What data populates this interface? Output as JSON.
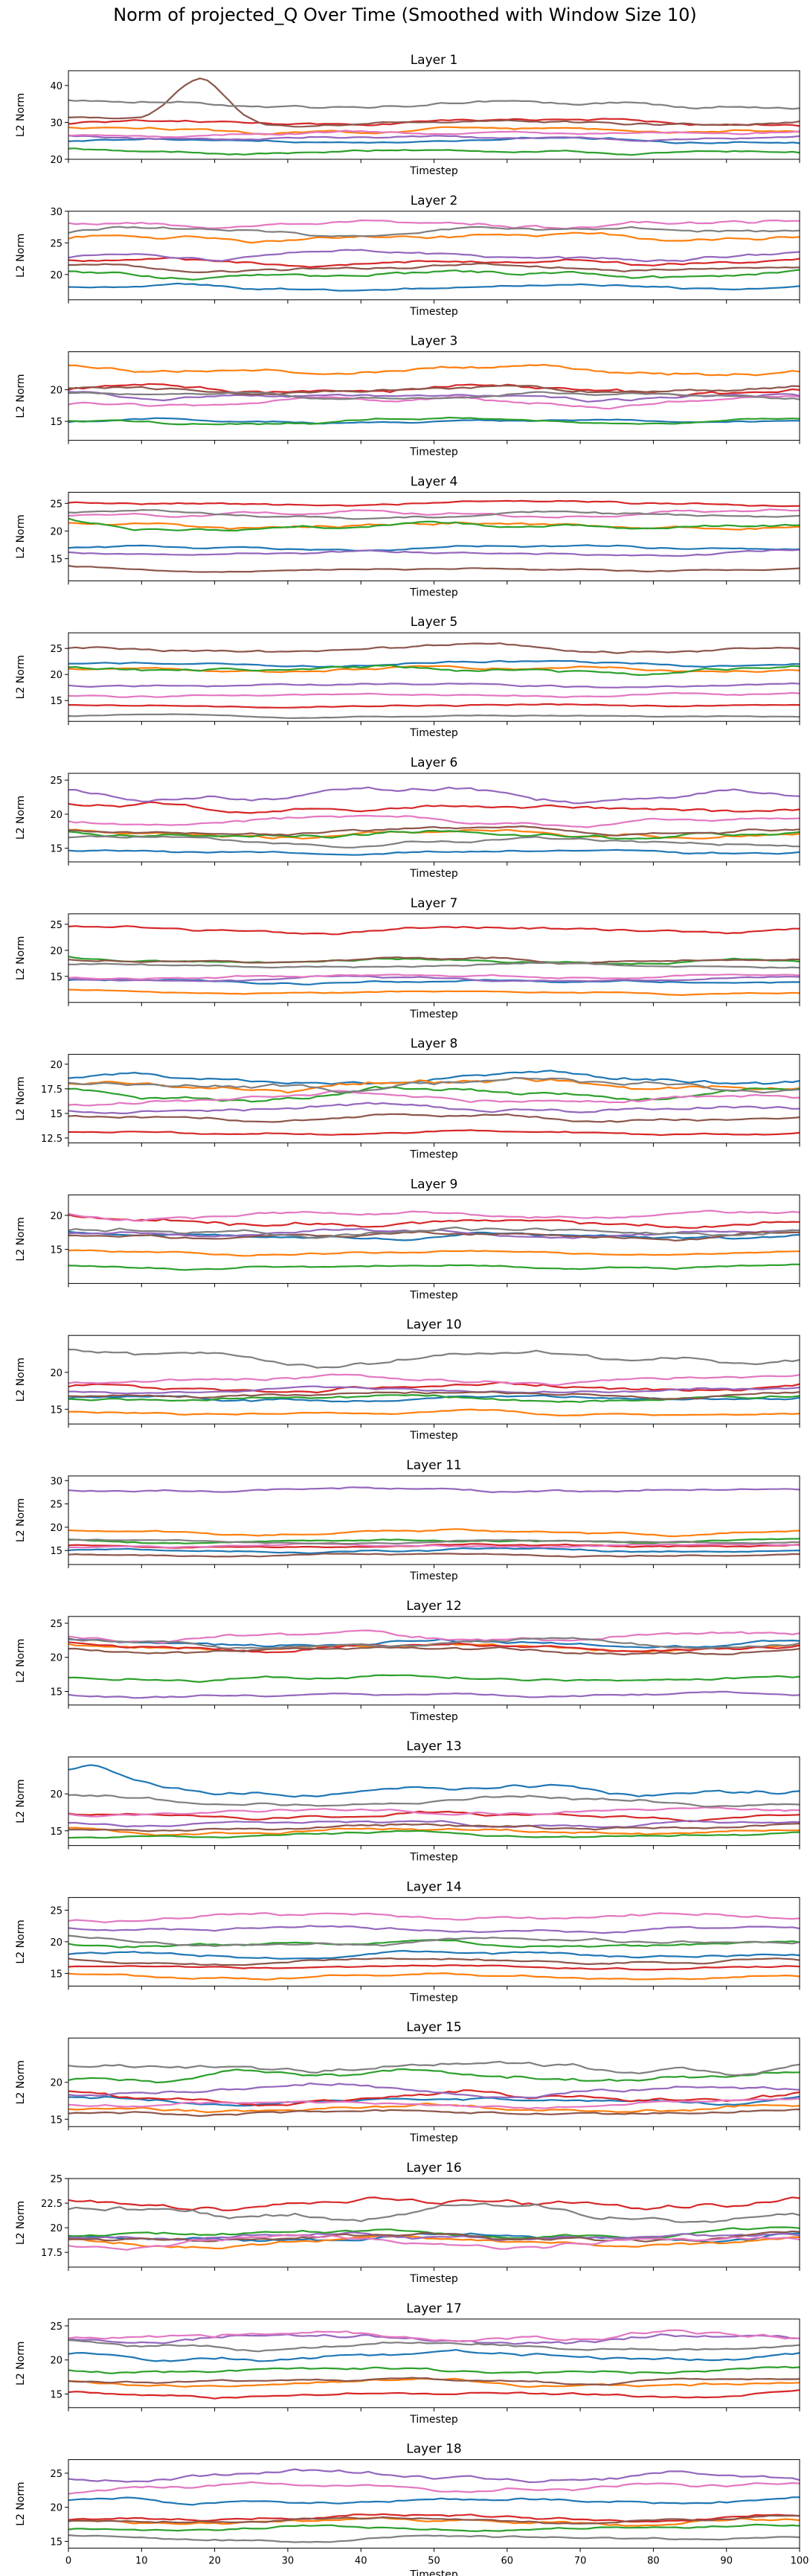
{
  "title": "Norm of projected_Q Over Time (Smoothed with Window Size 10)",
  "colors": [
    "#1f77b4",
    "#ff7f0e",
    "#2ca02c",
    "#d62728",
    "#9467bd",
    "#8c564b",
    "#e377c2",
    "#7f7f7f"
  ],
  "chart_data": {
    "type": "line",
    "xlabel": "Timestep",
    "ylabel": "L2 Norm",
    "xlim": [
      0,
      100
    ],
    "x_ticks": [
      0,
      10,
      20,
      30,
      40,
      50,
      60,
      70,
      80,
      90,
      100
    ],
    "n_points": 101,
    "panels": [
      {
        "title": "Layer 1",
        "ylim": [
          20,
          44
        ],
        "yticks": [
          20,
          30,
          40
        ],
        "series": [
          {
            "base": 25,
            "amp": 0.8,
            "phase": 0.3
          },
          {
            "base": 28,
            "amp": 1.0,
            "phase": 1.1
          },
          {
            "base": 22,
            "amp": 0.8,
            "phase": 2.0
          },
          {
            "base": 30,
            "amp": 0.9,
            "phase": 0.7
          },
          {
            "base": 26,
            "amp": 0.8,
            "phase": 2.6
          },
          {
            "base": 30,
            "amp": 1.0,
            "phase": 1.5,
            "bump": {
              "center": 18,
              "width": 5,
              "height": 12
            }
          },
          {
            "base": 27,
            "amp": 0.8,
            "phase": 3.1
          },
          {
            "base": 35,
            "amp": 1.2,
            "phase": 0.9
          }
        ]
      },
      {
        "title": "Layer 2",
        "ylim": [
          16,
          30
        ],
        "yticks": [
          20,
          25,
          30
        ],
        "series": [
          {
            "base": 18,
            "amp": 0.5,
            "phase": 0.4
          },
          {
            "base": 26,
            "amp": 0.8,
            "phase": 1.2
          },
          {
            "base": 20,
            "amp": 0.8,
            "phase": 2.1
          },
          {
            "base": 22,
            "amp": 0.7,
            "phase": 0.8
          },
          {
            "base": 23,
            "amp": 0.7,
            "phase": 2.5
          },
          {
            "base": 21,
            "amp": 0.6,
            "phase": 1.6
          },
          {
            "base": 28,
            "amp": 0.8,
            "phase": 3.0
          },
          {
            "base": 27,
            "amp": 0.7,
            "phase": 0.2
          }
        ]
      },
      {
        "title": "Layer 3",
        "ylim": [
          12,
          26
        ],
        "yticks": [
          15,
          20
        ],
        "series": [
          {
            "base": 15,
            "amp": 0.4,
            "phase": 0.5
          },
          {
            "base": 23,
            "amp": 0.8,
            "phase": 1.3
          },
          {
            "base": 15,
            "amp": 0.5,
            "phase": 2.2
          },
          {
            "base": 20,
            "amp": 0.9,
            "phase": 0.9
          },
          {
            "base": 19,
            "amp": 0.8,
            "phase": 2.7
          },
          {
            "base": 20,
            "amp": 0.7,
            "phase": 1.7
          },
          {
            "base": 18,
            "amp": 0.8,
            "phase": 3.2
          },
          {
            "base": 19,
            "amp": 0.6,
            "phase": 0.1
          }
        ]
      },
      {
        "title": "Layer 4",
        "ylim": [
          11,
          27
        ],
        "yticks": [
          15,
          20,
          25
        ],
        "series": [
          {
            "base": 17,
            "amp": 0.5,
            "phase": 0.6
          },
          {
            "base": 21,
            "amp": 0.8,
            "phase": 1.4
          },
          {
            "base": 21,
            "amp": 0.8,
            "phase": 2.3
          },
          {
            "base": 25,
            "amp": 0.6,
            "phase": 1.0
          },
          {
            "base": 16,
            "amp": 0.5,
            "phase": 2.8
          },
          {
            "base": 13,
            "amp": 0.4,
            "phase": 1.8
          },
          {
            "base": 23,
            "amp": 0.8,
            "phase": 3.3
          },
          {
            "base": 23,
            "amp": 0.7,
            "phase": 0.4
          }
        ]
      },
      {
        "title": "Layer 5",
        "ylim": [
          11,
          28
        ],
        "yticks": [
          15,
          20,
          25
        ],
        "series": [
          {
            "base": 22,
            "amp": 0.6,
            "phase": 0.7
          },
          {
            "base": 21,
            "amp": 0.7,
            "phase": 1.5
          },
          {
            "base": 21,
            "amp": 0.9,
            "phase": 2.4
          },
          {
            "base": 14,
            "amp": 0.4,
            "phase": 1.1
          },
          {
            "base": 18,
            "amp": 0.5,
            "phase": 2.9
          },
          {
            "base": 25,
            "amp": 0.8,
            "phase": 1.9
          },
          {
            "base": 16,
            "amp": 0.5,
            "phase": 3.4
          },
          {
            "base": 12,
            "amp": 0.3,
            "phase": 0.5
          }
        ]
      },
      {
        "title": "Layer 6",
        "ylim": [
          13,
          26
        ],
        "yticks": [
          15,
          20,
          25
        ],
        "series": [
          {
            "base": 14.5,
            "amp": 0.5,
            "phase": 0.8
          },
          {
            "base": 17,
            "amp": 0.7,
            "phase": 1.6
          },
          {
            "base": 17,
            "amp": 0.8,
            "phase": 2.5
          },
          {
            "base": 21,
            "amp": 0.9,
            "phase": 1.2
          },
          {
            "base": 23,
            "amp": 1.0,
            "phase": 3.0
          },
          {
            "base": 17.5,
            "amp": 0.6,
            "phase": 2.0
          },
          {
            "base": 19,
            "amp": 0.7,
            "phase": 3.5
          },
          {
            "base": 16,
            "amp": 0.6,
            "phase": 0.6
          }
        ]
      },
      {
        "title": "Layer 7",
        "ylim": [
          10,
          27
        ],
        "yticks": [
          15,
          20,
          25
        ],
        "series": [
          {
            "base": 14,
            "amp": 0.5,
            "phase": 0.9
          },
          {
            "base": 12,
            "amp": 0.4,
            "phase": 1.7
          },
          {
            "base": 18,
            "amp": 0.6,
            "phase": 2.6
          },
          {
            "base": 24,
            "amp": 0.7,
            "phase": 1.3
          },
          {
            "base": 14.5,
            "amp": 0.5,
            "phase": 3.1
          },
          {
            "base": 18,
            "amp": 0.6,
            "phase": 2.1
          },
          {
            "base": 15,
            "amp": 0.5,
            "phase": 3.6
          },
          {
            "base": 17,
            "amp": 0.5,
            "phase": 0.7
          }
        ]
      },
      {
        "title": "Layer 8",
        "ylim": [
          12,
          21
        ],
        "yticks": [
          12.5,
          15.0,
          17.5,
          20.0
        ],
        "series": [
          {
            "base": 18.5,
            "amp": 0.6,
            "phase": 1.0
          },
          {
            "base": 18,
            "amp": 0.7,
            "phase": 1.8
          },
          {
            "base": 17,
            "amp": 0.6,
            "phase": 2.7
          },
          {
            "base": 13,
            "amp": 0.3,
            "phase": 1.4
          },
          {
            "base": 15.5,
            "amp": 0.5,
            "phase": 3.2
          },
          {
            "base": 14.5,
            "amp": 0.4,
            "phase": 2.2
          },
          {
            "base": 16.5,
            "amp": 0.6,
            "phase": 3.7
          },
          {
            "base": 18,
            "amp": 0.7,
            "phase": 0.8
          }
        ]
      },
      {
        "title": "Layer 9",
        "ylim": [
          10,
          23
        ],
        "yticks": [
          15,
          20
        ],
        "series": [
          {
            "base": 17,
            "amp": 0.6,
            "phase": 1.1
          },
          {
            "base": 14.5,
            "amp": 0.4,
            "phase": 1.9
          },
          {
            "base": 12.5,
            "amp": 0.4,
            "phase": 2.8
          },
          {
            "base": 19,
            "amp": 0.9,
            "phase": 1.5
          },
          {
            "base": 17.5,
            "amp": 0.6,
            "phase": 3.3
          },
          {
            "base": 17,
            "amp": 0.6,
            "phase": 2.3
          },
          {
            "base": 20,
            "amp": 0.7,
            "phase": 3.8
          },
          {
            "base": 17.5,
            "amp": 0.8,
            "phase": 0.9
          }
        ]
      },
      {
        "title": "Layer 10",
        "ylim": [
          13,
          25
        ],
        "yticks": [
          15,
          20
        ],
        "series": [
          {
            "base": 16.5,
            "amp": 0.5,
            "phase": 1.2
          },
          {
            "base": 14.5,
            "amp": 0.4,
            "phase": 2.0
          },
          {
            "base": 16.5,
            "amp": 0.5,
            "phase": 2.9
          },
          {
            "base": 18,
            "amp": 0.7,
            "phase": 1.6
          },
          {
            "base": 17.5,
            "amp": 0.5,
            "phase": 3.4
          },
          {
            "base": 17,
            "amp": 0.5,
            "phase": 2.4
          },
          {
            "base": 19,
            "amp": 0.6,
            "phase": 3.9
          },
          {
            "base": 22,
            "amp": 0.9,
            "phase": 1.0
          }
        ]
      },
      {
        "title": "Layer 11",
        "ylim": [
          12,
          31
        ],
        "yticks": [
          15,
          20,
          25,
          30
        ],
        "series": [
          {
            "base": 15,
            "amp": 0.5,
            "phase": 1.3
          },
          {
            "base": 19,
            "amp": 0.7,
            "phase": 2.1
          },
          {
            "base": 17,
            "amp": 0.5,
            "phase": 3.0
          },
          {
            "base": 16,
            "amp": 0.5,
            "phase": 1.7
          },
          {
            "base": 28,
            "amp": 0.7,
            "phase": 3.5
          },
          {
            "base": 14,
            "amp": 0.4,
            "phase": 2.5
          },
          {
            "base": 16,
            "amp": 0.5,
            "phase": 4.0
          },
          {
            "base": 17,
            "amp": 0.5,
            "phase": 1.1
          }
        ]
      },
      {
        "title": "Layer 12",
        "ylim": [
          13,
          26
        ],
        "yticks": [
          15,
          20,
          25
        ],
        "series": [
          {
            "base": 22,
            "amp": 0.7,
            "phase": 1.4
          },
          {
            "base": 21.5,
            "amp": 0.7,
            "phase": 2.2
          },
          {
            "base": 17,
            "amp": 0.6,
            "phase": 3.1
          },
          {
            "base": 21.5,
            "amp": 0.7,
            "phase": 1.8
          },
          {
            "base": 14.5,
            "amp": 0.4,
            "phase": 3.6
          },
          {
            "base": 21,
            "amp": 0.6,
            "phase": 2.6
          },
          {
            "base": 23,
            "amp": 0.8,
            "phase": 4.1
          },
          {
            "base": 22,
            "amp": 0.8,
            "phase": 1.2
          }
        ]
      },
      {
        "title": "Layer 13",
        "ylim": [
          13,
          25
        ],
        "yticks": [
          15,
          20
        ],
        "series": [
          {
            "base": 20.5,
            "amp": 0.9,
            "phase": 1.5,
            "bump": {
              "center": 3,
              "width": 6,
              "height": 3
            }
          },
          {
            "base": 15,
            "amp": 0.5,
            "phase": 2.3
          },
          {
            "base": 14.5,
            "amp": 0.4,
            "phase": 3.2
          },
          {
            "base": 17,
            "amp": 0.6,
            "phase": 1.9
          },
          {
            "base": 16,
            "amp": 0.5,
            "phase": 3.7
          },
          {
            "base": 15.5,
            "amp": 0.5,
            "phase": 2.7
          },
          {
            "base": 17.5,
            "amp": 0.6,
            "phase": 4.2
          },
          {
            "base": 19,
            "amp": 0.7,
            "phase": 1.3
          }
        ]
      },
      {
        "title": "Layer 14",
        "ylim": [
          13,
          27
        ],
        "yticks": [
          15,
          20,
          25
        ],
        "series": [
          {
            "base": 18,
            "amp": 0.6,
            "phase": 1.6
          },
          {
            "base": 14.5,
            "amp": 0.5,
            "phase": 2.4
          },
          {
            "base": 19.5,
            "amp": 0.7,
            "phase": 3.3
          },
          {
            "base": 16,
            "amp": 0.4,
            "phase": 2.0
          },
          {
            "base": 22,
            "amp": 0.6,
            "phase": 3.8
          },
          {
            "base": 17,
            "amp": 0.5,
            "phase": 2.8
          },
          {
            "base": 24,
            "amp": 0.8,
            "phase": 4.3
          },
          {
            "base": 20,
            "amp": 0.7,
            "phase": 1.4
          }
        ]
      },
      {
        "title": "Layer 15",
        "ylim": [
          14,
          26
        ],
        "yticks": [
          15,
          20
        ],
        "series": [
          {
            "base": 17.5,
            "amp": 0.6,
            "phase": 1.7
          },
          {
            "base": 16.5,
            "amp": 0.6,
            "phase": 2.5
          },
          {
            "base": 21,
            "amp": 0.8,
            "phase": 3.4
          },
          {
            "base": 18,
            "amp": 0.9,
            "phase": 2.1
          },
          {
            "base": 19,
            "amp": 0.8,
            "phase": 3.9
          },
          {
            "base": 16,
            "amp": 0.5,
            "phase": 2.9
          },
          {
            "base": 17,
            "amp": 0.6,
            "phase": 4.4
          },
          {
            "base": 22,
            "amp": 0.9,
            "phase": 1.5
          }
        ]
      },
      {
        "title": "Layer 16",
        "ylim": [
          16,
          25
        ],
        "yticks": [
          17.5,
          20.0,
          22.5,
          25.0
        ],
        "series": [
          {
            "base": 19,
            "amp": 0.5,
            "phase": 1.8
          },
          {
            "base": 18.5,
            "amp": 0.5,
            "phase": 2.6
          },
          {
            "base": 19.5,
            "amp": 0.5,
            "phase": 3.5
          },
          {
            "base": 22.5,
            "amp": 0.8,
            "phase": 2.2
          },
          {
            "base": 19,
            "amp": 0.5,
            "phase": 4.0
          },
          {
            "base": 19,
            "amp": 0.5,
            "phase": 3.0
          },
          {
            "base": 18.5,
            "amp": 0.6,
            "phase": 4.5
          },
          {
            "base": 21.5,
            "amp": 0.8,
            "phase": 1.6
          }
        ]
      },
      {
        "title": "Layer 17",
        "ylim": [
          13,
          26
        ],
        "yticks": [
          15,
          20,
          25
        ],
        "series": [
          {
            "base": 20.5,
            "amp": 0.7,
            "phase": 1.9
          },
          {
            "base": 16.5,
            "amp": 0.6,
            "phase": 2.7
          },
          {
            "base": 18.5,
            "amp": 0.6,
            "phase": 3.6
          },
          {
            "base": 15,
            "amp": 0.5,
            "phase": 2.3
          },
          {
            "base": 23,
            "amp": 0.8,
            "phase": 4.1
          },
          {
            "base": 17,
            "amp": 0.5,
            "phase": 3.1
          },
          {
            "base": 23.5,
            "amp": 0.9,
            "phase": 4.6
          },
          {
            "base": 22,
            "amp": 0.7,
            "phase": 1.7
          }
        ]
      },
      {
        "title": "Layer 18",
        "ylim": [
          14,
          27
        ],
        "yticks": [
          15,
          20,
          25
        ],
        "series": [
          {
            "base": 21,
            "amp": 0.7,
            "phase": 2.0
          },
          {
            "base": 18,
            "amp": 0.6,
            "phase": 2.8
          },
          {
            "base": 17,
            "amp": 0.5,
            "phase": 3.7
          },
          {
            "base": 18.5,
            "amp": 0.6,
            "phase": 2.4
          },
          {
            "base": 24.5,
            "amp": 0.8,
            "phase": 4.2
          },
          {
            "base": 18,
            "amp": 0.5,
            "phase": 3.2
          },
          {
            "base": 23,
            "amp": 0.7,
            "phase": 4.7
          },
          {
            "base": 15.5,
            "amp": 0.5,
            "phase": 1.8
          }
        ]
      }
    ]
  }
}
